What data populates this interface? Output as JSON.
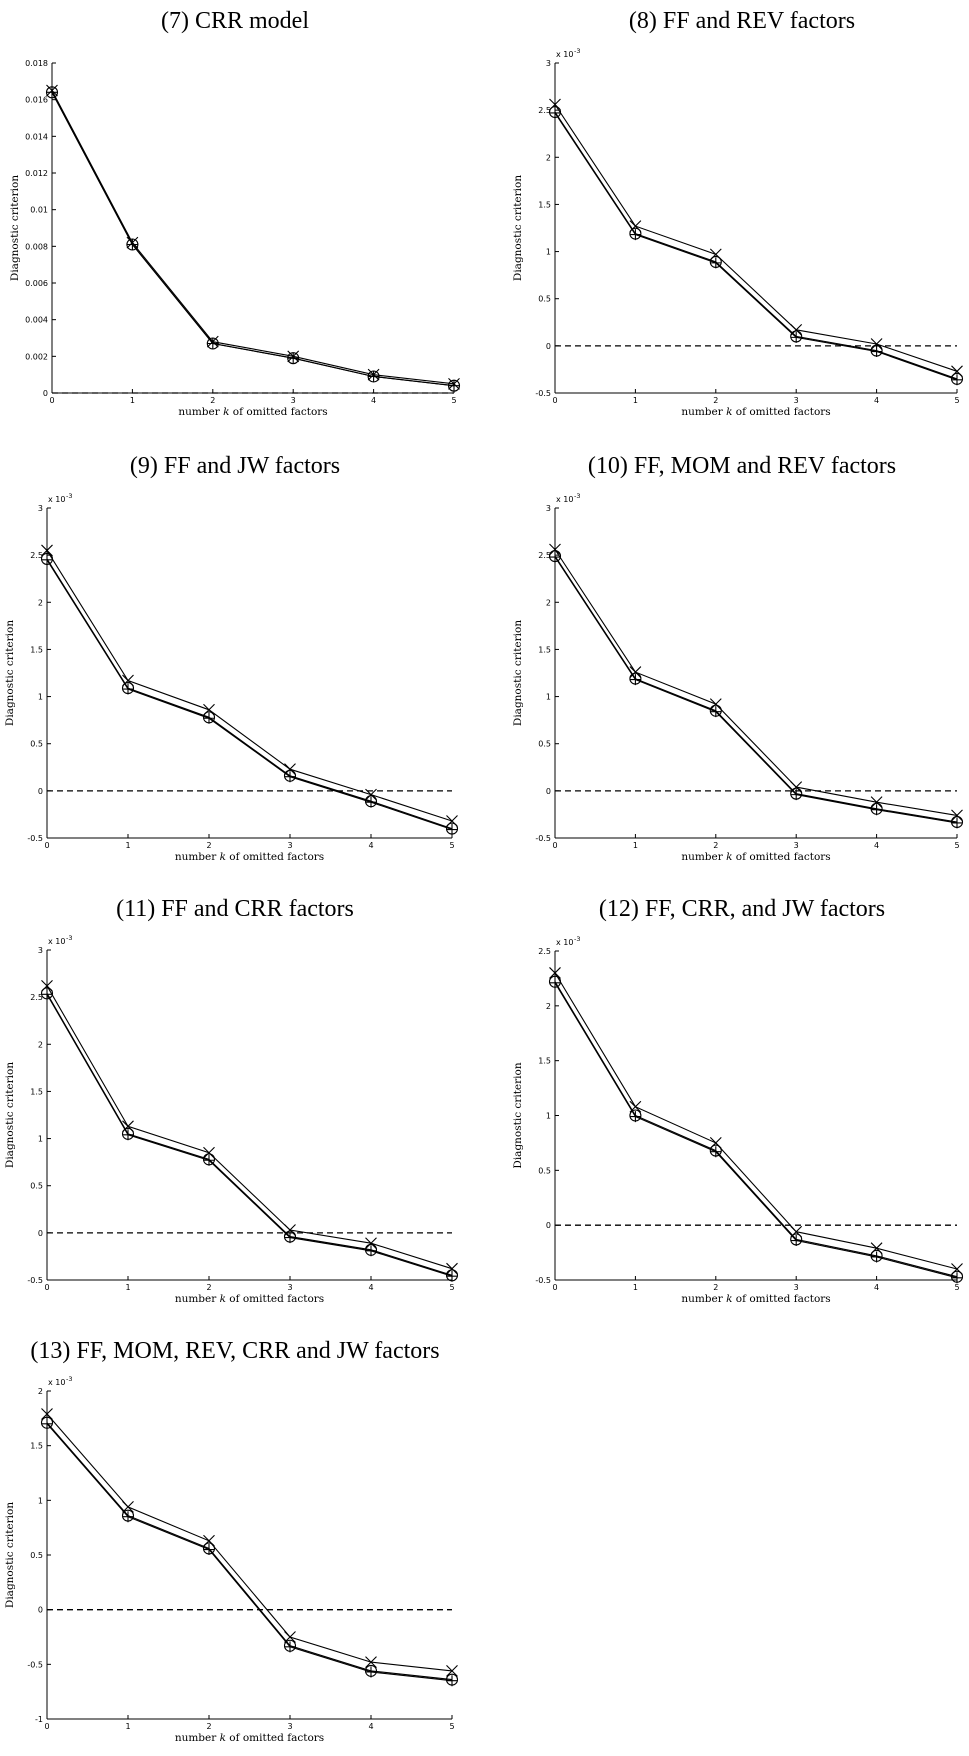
{
  "chart_data": [
    {
      "type": "line",
      "title": "(7) CRR model",
      "xlabel": "number k of omitted factors",
      "ylabel": "Diagnostic criterion",
      "exponent_label": "",
      "x": [
        0,
        1,
        2,
        3,
        4,
        5
      ],
      "xlim": [
        0,
        5
      ],
      "ylim": [
        0,
        0.018
      ],
      "yticks": [
        0,
        0.002,
        0.004,
        0.006,
        0.008,
        0.01,
        0.012,
        0.014,
        0.016,
        0.018
      ],
      "ytick_labels": [
        "0",
        "0.002",
        "0.004",
        "0.006",
        "0.008",
        "0.01",
        "0.012",
        "0.014",
        "0.016",
        "0.018"
      ],
      "zero_line": true,
      "series": [
        {
          "marker": "x",
          "values": [
            0.0165,
            0.0082,
            0.0028,
            0.002,
            0.001,
            0.0005
          ]
        },
        {
          "marker": "o",
          "values": [
            0.0164,
            0.0081,
            0.0027,
            0.0019,
            0.0009,
            0.0004
          ]
        },
        {
          "marker": "+",
          "values": [
            0.0164,
            0.0081,
            0.0027,
            0.0019,
            0.0009,
            0.0004
          ]
        }
      ]
    },
    {
      "type": "line",
      "title": "(8) FF and REV factors",
      "xlabel": "number k of omitted factors",
      "ylabel": "Diagnostic criterion",
      "exponent_label": "x 10",
      "exponent_power": "-3",
      "x": [
        0,
        1,
        2,
        3,
        4,
        5
      ],
      "xlim": [
        0,
        5
      ],
      "ylim": [
        -0.5,
        3
      ],
      "yticks": [
        -0.5,
        0,
        0.5,
        1,
        1.5,
        2,
        2.5,
        3
      ],
      "ytick_labels": [
        "-0.5",
        "0",
        "0.5",
        "1",
        "1.5",
        "2",
        "2.5",
        "3"
      ],
      "zero_line": true,
      "series": [
        {
          "marker": "x",
          "values": [
            2.56,
            1.27,
            0.97,
            0.17,
            0.02,
            -0.27
          ]
        },
        {
          "marker": "o",
          "values": [
            2.48,
            1.19,
            0.89,
            0.1,
            -0.05,
            -0.35
          ]
        },
        {
          "marker": "+",
          "values": [
            2.47,
            1.18,
            0.88,
            0.09,
            -0.06,
            -0.36
          ]
        }
      ]
    },
    {
      "type": "line",
      "title": "(9) FF and JW factors",
      "xlabel": "number k of omitted factors",
      "ylabel": "Diagnostic criterion",
      "exponent_label": "x 10",
      "exponent_power": "-3",
      "x": [
        0,
        1,
        2,
        3,
        4,
        5
      ],
      "xlim": [
        0,
        5
      ],
      "ylim": [
        -0.5,
        3
      ],
      "yticks": [
        -0.5,
        0,
        0.5,
        1,
        1.5,
        2,
        2.5,
        3
      ],
      "ytick_labels": [
        "-0.5",
        "0",
        "0.5",
        "1",
        "1.5",
        "2",
        "2.5",
        "3"
      ],
      "zero_line": true,
      "series": [
        {
          "marker": "x",
          "values": [
            2.55,
            1.17,
            0.86,
            0.23,
            -0.04,
            -0.32
          ]
        },
        {
          "marker": "o",
          "values": [
            2.46,
            1.09,
            0.78,
            0.16,
            -0.11,
            -0.4
          ]
        },
        {
          "marker": "+",
          "values": [
            2.45,
            1.08,
            0.77,
            0.15,
            -0.12,
            -0.41
          ]
        }
      ]
    },
    {
      "type": "line",
      "title": "(10) FF, MOM and REV factors",
      "xlabel": "number k of omitted factors",
      "ylabel": "Diagnostic criterion",
      "exponent_label": "x 10",
      "exponent_power": "-3",
      "x": [
        0,
        1,
        2,
        3,
        4,
        5
      ],
      "xlim": [
        0,
        5
      ],
      "ylim": [
        -0.5,
        3
      ],
      "yticks": [
        -0.5,
        0,
        0.5,
        1,
        1.5,
        2,
        2.5,
        3
      ],
      "ytick_labels": [
        "-0.5",
        "0",
        "0.5",
        "1",
        "1.5",
        "2",
        "2.5",
        "3"
      ],
      "zero_line": true,
      "series": [
        {
          "marker": "x",
          "values": [
            2.56,
            1.26,
            0.92,
            0.04,
            -0.12,
            -0.26
          ]
        },
        {
          "marker": "o",
          "values": [
            2.49,
            1.19,
            0.85,
            -0.03,
            -0.19,
            -0.33
          ]
        },
        {
          "marker": "+",
          "values": [
            2.48,
            1.18,
            0.84,
            -0.04,
            -0.2,
            -0.34
          ]
        }
      ]
    },
    {
      "type": "line",
      "title": "(11) FF and CRR factors",
      "xlabel": "number k of omitted factors",
      "ylabel": "Diagnostic criterion",
      "exponent_label": "x 10",
      "exponent_power": "-3",
      "x": [
        0,
        1,
        2,
        3,
        4,
        5
      ],
      "xlim": [
        0,
        5
      ],
      "ylim": [
        -0.5,
        3
      ],
      "yticks": [
        -0.5,
        0,
        0.5,
        1,
        1.5,
        2,
        2.5,
        3
      ],
      "ytick_labels": [
        "-0.5",
        "0",
        "0.5",
        "1",
        "1.5",
        "2",
        "2.5",
        "3"
      ],
      "zero_line": true,
      "series": [
        {
          "marker": "x",
          "values": [
            2.62,
            1.13,
            0.85,
            0.03,
            -0.11,
            -0.38
          ]
        },
        {
          "marker": "o",
          "values": [
            2.54,
            1.05,
            0.78,
            -0.04,
            -0.18,
            -0.45
          ]
        },
        {
          "marker": "+",
          "values": [
            2.53,
            1.04,
            0.77,
            -0.05,
            -0.19,
            -0.46
          ]
        }
      ]
    },
    {
      "type": "line",
      "title": "(12) FF, CRR, and JW factors",
      "xlabel": "number k of omitted factors",
      "ylabel": "Diagnostic criterion",
      "exponent_label": "x 10",
      "exponent_power": "-3",
      "x": [
        0,
        1,
        2,
        3,
        4,
        5
      ],
      "xlim": [
        0,
        5
      ],
      "ylim": [
        -0.5,
        2.5
      ],
      "yticks": [
        -0.5,
        0,
        0.5,
        1,
        1.5,
        2,
        2.5
      ],
      "ytick_labels": [
        "-0.5",
        "0",
        "0.5",
        "1",
        "1.5",
        "2",
        "2.5"
      ],
      "zero_line": true,
      "series": [
        {
          "marker": "x",
          "values": [
            2.3,
            1.08,
            0.75,
            -0.06,
            -0.21,
            -0.4
          ]
        },
        {
          "marker": "o",
          "values": [
            2.22,
            1.0,
            0.68,
            -0.13,
            -0.28,
            -0.47
          ]
        },
        {
          "marker": "+",
          "values": [
            2.21,
            0.99,
            0.67,
            -0.14,
            -0.29,
            -0.48
          ]
        }
      ]
    },
    {
      "type": "line",
      "title": "(13) FF, MOM, REV, CRR and JW factors",
      "xlabel": "number k of omitted factors",
      "ylabel": "Diagnostic criterion",
      "exponent_label": "x 10",
      "exponent_power": "-3",
      "x": [
        0,
        1,
        2,
        3,
        4,
        5
      ],
      "xlim": [
        0,
        5
      ],
      "ylim": [
        -1,
        2
      ],
      "yticks": [
        -1,
        -0.5,
        0,
        0.5,
        1,
        1.5,
        2
      ],
      "ytick_labels": [
        "-1",
        "-0.5",
        "0",
        "0.5",
        "1",
        "1.5",
        "2"
      ],
      "zero_line": true,
      "series": [
        {
          "marker": "x",
          "values": [
            1.79,
            0.94,
            0.63,
            -0.25,
            -0.48,
            -0.56
          ]
        },
        {
          "marker": "o",
          "values": [
            1.71,
            0.86,
            0.56,
            -0.33,
            -0.56,
            -0.64
          ]
        },
        {
          "marker": "+",
          "values": [
            1.7,
            0.85,
            0.55,
            -0.34,
            -0.57,
            -0.65
          ]
        }
      ]
    }
  ]
}
